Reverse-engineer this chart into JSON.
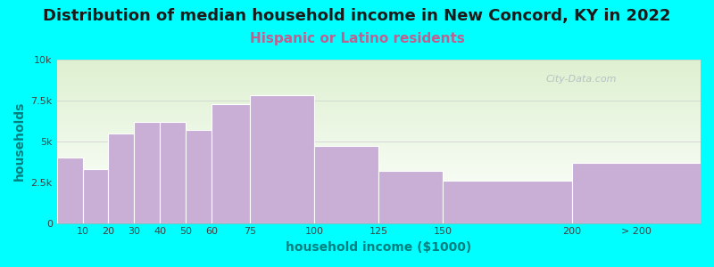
{
  "title": "Distribution of median household income in New Concord, KY in 2022",
  "subtitle": "Hispanic or Latino residents",
  "xlabel": "household income ($1000)",
  "ylabel": "households",
  "background_color": "#00FFFF",
  "plot_bg_top": "#dff0d8",
  "plot_bg_bottom": "#ffffff",
  "bar_color": "#c9aed6",
  "bar_edge_color": "#ffffff",
  "title_fontsize": 13,
  "subtitle_fontsize": 11,
  "subtitle_color": "#c06090",
  "ylabel_color": "#008080",
  "xlabel_color": "#008080",
  "watermark": "City-Data.com",
  "bin_edges": [
    0,
    10,
    20,
    30,
    40,
    50,
    60,
    75,
    100,
    125,
    150,
    200,
    250
  ],
  "tick_labels": [
    "10",
    "20",
    "30",
    "40",
    "50",
    "60",
    "75",
    "100",
    "125",
    "150",
    "200",
    "> 200"
  ],
  "tick_positions": [
    10,
    20,
    30,
    40,
    50,
    60,
    75,
    100,
    125,
    150,
    200,
    225
  ],
  "values": [
    4000,
    3300,
    5500,
    6200,
    6200,
    5700,
    7300,
    7800,
    4700,
    3200,
    2600,
    3700
  ],
  "yticks": [
    0,
    2500,
    5000,
    7500,
    10000
  ],
  "ytick_labels": [
    "0",
    "2.5k",
    "5k",
    "7.5k",
    "10k"
  ],
  "ylim": [
    0,
    10000
  ],
  "xlim": [
    0,
    250
  ]
}
